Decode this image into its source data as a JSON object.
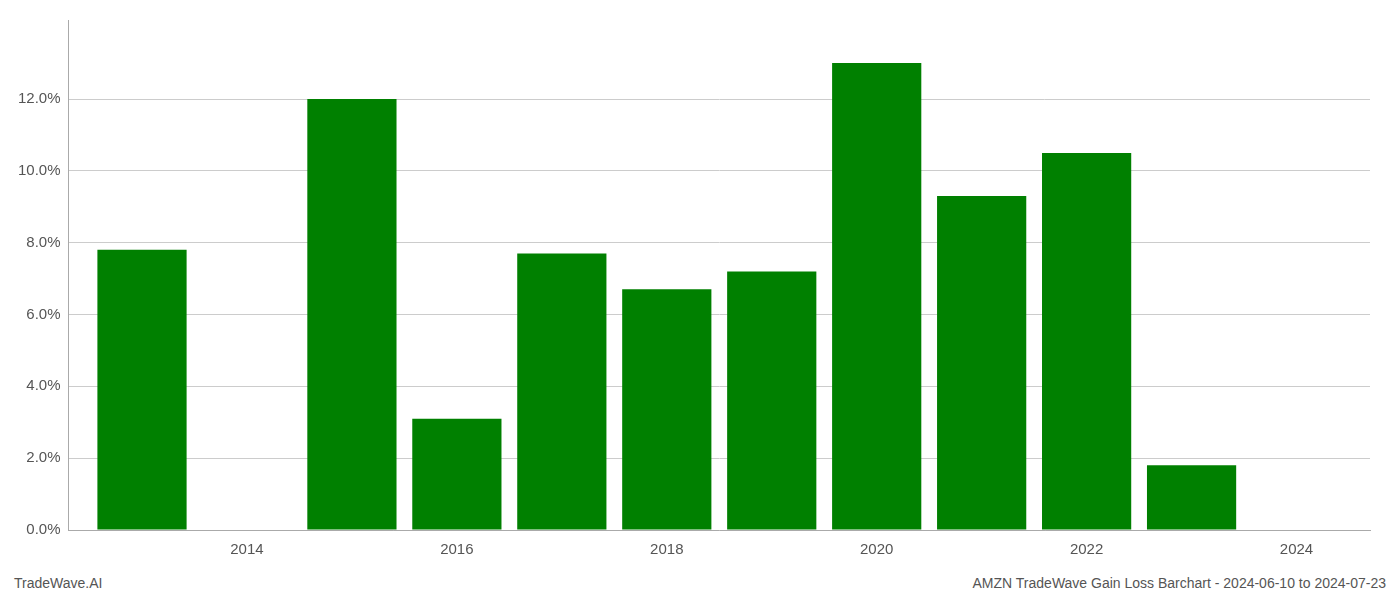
{
  "chart_data": {
    "type": "bar",
    "x": [
      2013,
      2015,
      2016,
      2017,
      2018,
      2019,
      2020,
      2021,
      2022,
      2023
    ],
    "values": [
      0.078,
      0.12,
      0.031,
      0.077,
      0.067,
      0.072,
      0.13,
      0.093,
      0.105,
      0.018
    ],
    "color": "#008000",
    "xlim": [
      2012.3,
      2024.7
    ],
    "ylim": [
      0.0,
      0.142
    ],
    "xticks": [
      2014,
      2016,
      2018,
      2020,
      2022,
      2024
    ],
    "yticks": [
      {
        "value": 0.0,
        "label": "0.0%"
      },
      {
        "value": 0.02,
        "label": "2.0%"
      },
      {
        "value": 0.04,
        "label": "4.0%"
      },
      {
        "value": 0.06,
        "label": "6.0%"
      },
      {
        "value": 0.08,
        "label": "8.0%"
      },
      {
        "value": 0.1,
        "label": "10.0%"
      },
      {
        "value": 0.12,
        "label": "12.0%"
      }
    ],
    "grid": "y",
    "annotations": [
      "TradeWave.AI",
      "AMZN TradeWave Gain Loss Barchart - 2024-06-10 to 2024-07-23"
    ]
  }
}
